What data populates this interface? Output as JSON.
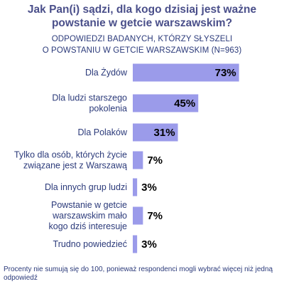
{
  "title": "Jak Pan(i) sądzi, dla kogo dzisiaj jest ważne powstanie w getcie warszawskim?",
  "subtitle_lines": [
    "ODPOWIEDZI BADANYCH, KTÓRZY SŁYSZELI",
    "O POWSTANIU W GETCIE WARSZAWSKIM (N=963)"
  ],
  "footnote": "Procenty nie sumują się do 100, ponieważ respondenci mogli wybrać więcej niż jedną odpowiedź",
  "colors": {
    "bar": "#9b9bea",
    "text": "#2b3a7a",
    "title": "#4a4f8a"
  },
  "chart_data": {
    "type": "bar",
    "orientation": "horizontal",
    "title": "Jak Pan(i) sądzi, dla kogo dzisiaj jest ważne powstanie w getcie warszawskim?",
    "categories": [
      [
        "Dla Żydów"
      ],
      [
        "Dla ludzi starszego",
        "pokolenia"
      ],
      [
        "Dla Polaków"
      ],
      [
        "Tylko dla osób, których życie",
        "związane jest z Warszawą"
      ],
      [
        "Dla innych grup ludzi"
      ],
      [
        "Powstanie w getcie",
        "warszawskim mało",
        "kogo dziś interesuje"
      ],
      [
        "Trudno powiedzieć"
      ]
    ],
    "values": [
      73,
      45,
      31,
      7,
      3,
      7,
      3
    ],
    "value_labels": [
      "73%",
      "45%",
      "31%",
      "7%",
      "3%",
      "7%",
      "3%"
    ],
    "xlim": [
      0,
      100
    ],
    "grid": false,
    "legend": "none"
  }
}
